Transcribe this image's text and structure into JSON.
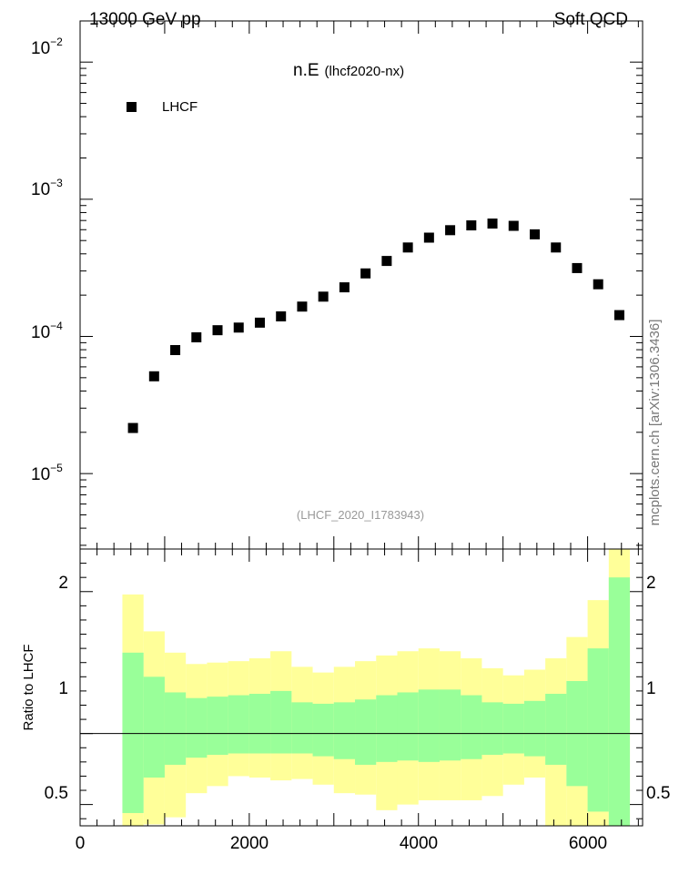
{
  "header": {
    "left": "13000 GeV pp",
    "right": "Soft QCD"
  },
  "side_label": "mcplots.cern.ch [arXiv:1306.3436]",
  "chart_data": [
    {
      "type": "scatter",
      "panel": "main",
      "title_main": "n.E",
      "title_sub": "(lhcf2020-nx)",
      "watermark": "(LHCF_2020_I1783943)",
      "yscale": "log",
      "xlim": [
        0,
        6650
      ],
      "ylim_log10": [
        -5.55,
        -1.7
      ],
      "ytick_labels": [
        {
          "base": "10",
          "exp": "−2",
          "value": 0.01
        },
        {
          "base": "10",
          "exp": "−3",
          "value": 0.001
        },
        {
          "base": "10",
          "exp": "−4",
          "value": 0.0001
        },
        {
          "base": "10",
          "exp": "−5",
          "value": 1e-05
        }
      ],
      "legend": {
        "placement": "top-left",
        "entries": [
          "LHCF"
        ]
      },
      "series": [
        {
          "name": "LHCF",
          "color": "#000000",
          "x": [
            625,
            875,
            1125,
            1375,
            1625,
            1875,
            2125,
            2375,
            2625,
            2875,
            3125,
            3375,
            3625,
            3875,
            4125,
            4375,
            4625,
            4875,
            5125,
            5375,
            5625,
            5875,
            6125,
            6375
          ],
          "y": [
            2.15e-05,
            5.12e-05,
            7.95e-05,
            9.85e-05,
            0.000111,
            0.000116,
            0.000126,
            0.00014,
            0.000165,
            0.000195,
            0.000228,
            0.000288,
            0.000355,
            0.000445,
            0.000525,
            0.000595,
            0.000645,
            0.000665,
            0.00064,
            0.000555,
            0.000445,
            0.000315,
            0.00024,
            0.000143
          ]
        }
      ]
    },
    {
      "type": "area",
      "panel": "ratio",
      "ylabel": "Ratio to LHCF",
      "xlim": [
        0,
        6650
      ],
      "ylim": [
        0.35,
        2.3
      ],
      "x_tick_labels": [
        "0",
        "2000",
        "4000",
        "6000"
      ],
      "x_tick_values": [
        0,
        2000,
        4000,
        6000
      ],
      "y_tick_labels": [
        "2",
        "1",
        "0.5"
      ],
      "y_tick_values": [
        2,
        1,
        0.5
      ],
      "bin_edges": [
        500,
        750,
        1000,
        1250,
        1500,
        1750,
        2000,
        2250,
        2500,
        2750,
        3000,
        3250,
        3500,
        3750,
        4000,
        4250,
        4500,
        4750,
        5000,
        5250,
        5500,
        5750,
        6000,
        6250,
        6500
      ],
      "bands": [
        {
          "color": "#ffff99",
          "upper": [
            1.98,
            1.72,
            1.57,
            1.49,
            1.5,
            1.51,
            1.53,
            1.58,
            1.47,
            1.43,
            1.47,
            1.51,
            1.55,
            1.58,
            1.6,
            1.58,
            1.53,
            1.46,
            1.41,
            1.45,
            1.53,
            1.68,
            1.94,
            2.45
          ],
          "lower": [
            0.3,
            0.36,
            0.41,
            0.58,
            0.63,
            0.7,
            0.69,
            0.67,
            0.68,
            0.64,
            0.58,
            0.57,
            0.46,
            0.5,
            0.53,
            0.53,
            0.53,
            0.56,
            0.64,
            0.69,
            0.3,
            0.3,
            0.3,
            0.3
          ]
        },
        {
          "color": "#99ff99",
          "upper": [
            1.57,
            1.4,
            1.29,
            1.25,
            1.26,
            1.27,
            1.28,
            1.3,
            1.22,
            1.21,
            1.22,
            1.24,
            1.27,
            1.29,
            1.31,
            1.31,
            1.27,
            1.22,
            1.21,
            1.23,
            1.28,
            1.37,
            1.6,
            2.1
          ],
          "lower": [
            0.44,
            0.69,
            0.78,
            0.83,
            0.85,
            0.86,
            0.86,
            0.86,
            0.86,
            0.84,
            0.82,
            0.78,
            0.8,
            0.81,
            0.8,
            0.81,
            0.82,
            0.85,
            0.86,
            0.84,
            0.78,
            0.63,
            0.45,
            0.3
          ]
        }
      ],
      "reference_line": 1
    }
  ]
}
